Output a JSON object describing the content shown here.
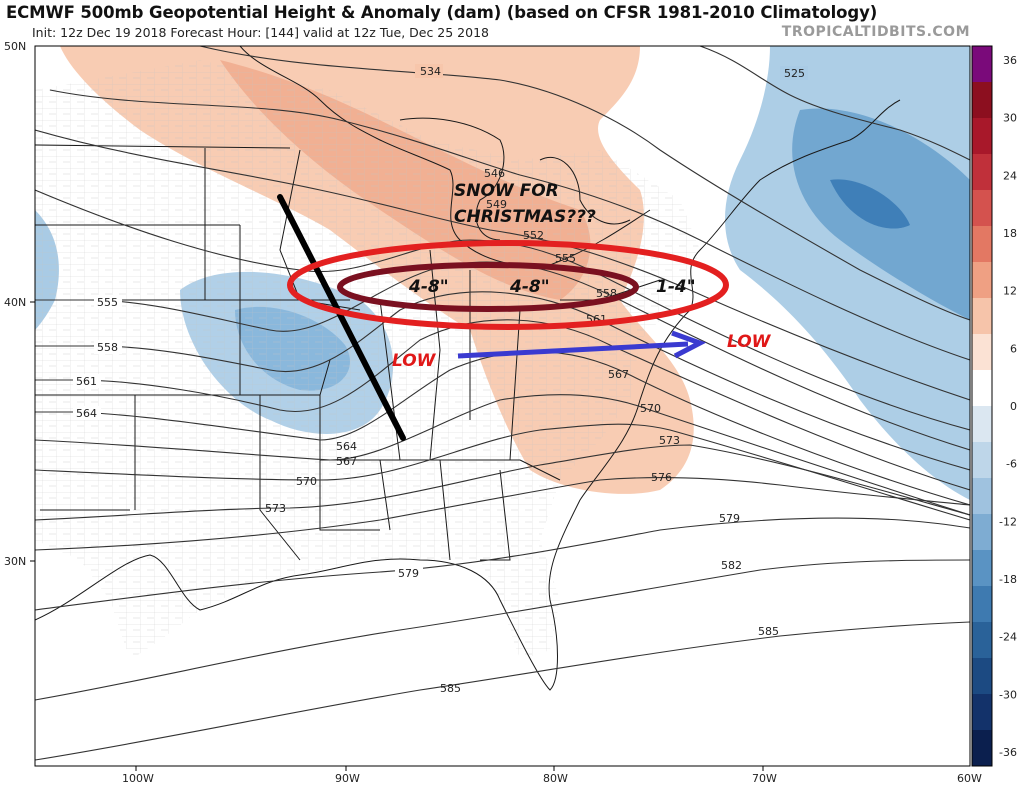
{
  "header": {
    "title": "ECMWF 500mb Geopotential Height & Anomaly (dam) (based on CFSR 1981-2010 Climatology)",
    "subtitle": "Init: 12z Dec 19 2018   Forecast Hour: [144]   valid at 12z Tue, Dec 25 2018",
    "brand": "TROPICALTIDBITS.COM"
  },
  "map": {
    "lat_labels": [
      "50N",
      "40N",
      "30N"
    ],
    "lon_labels": [
      "100W",
      "90W",
      "80W",
      "70W",
      "60W"
    ],
    "contour_labels": [
      "534",
      "525",
      "546",
      "549",
      "552",
      "555",
      "558",
      "561",
      "564",
      "567",
      "570",
      "573",
      "576",
      "579",
      "582",
      "585"
    ]
  },
  "colorbar": {
    "ticks": [
      "36",
      "30",
      "24",
      "18",
      "12",
      "6",
      "0",
      "-6",
      "-12",
      "-18",
      "-24",
      "-30",
      "-36"
    ],
    "colors": [
      "#7a0a7a",
      "#8c0f1f",
      "#a8182a",
      "#c0303a",
      "#d4524e",
      "#e37863",
      "#efa083",
      "#f6c4aa",
      "#fbe2d4",
      "#ffffff",
      "#dbe7f1",
      "#bed6e9",
      "#9fc2df",
      "#7eacd2",
      "#5a93c3",
      "#3e7ab0",
      "#2a6299",
      "#1c4a82",
      "#13326a",
      "#0b1f4e"
    ]
  },
  "annotations": {
    "headline_line1": "SNOW FOR",
    "headline_line2": "CHRISTMAS???",
    "snow_west": "4-8\"",
    "snow_central": "4-8\"",
    "snow_east": "1-4\"",
    "low_label_1": "LOW",
    "low_label_2": "LOW"
  },
  "legend_colors": {
    "warm_anomaly": "#f6c2a6",
    "cold_anomaly": "#7fb0d6",
    "red_oval": "#e32020",
    "dark_oval": "#7a1020",
    "arrow": "#3a3ad0",
    "low_text": "#e01818"
  }
}
